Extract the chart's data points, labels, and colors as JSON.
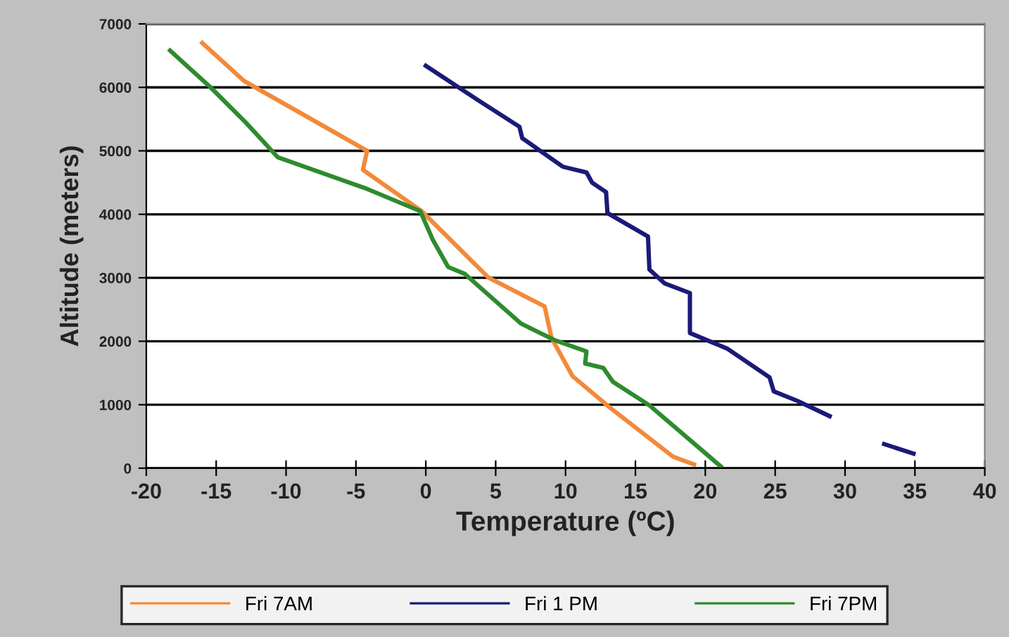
{
  "chart_data": {
    "type": "line",
    "xlabel": "Temperature (ºC)",
    "ylabel": "Altitude (meters)",
    "xlim": [
      -20,
      40
    ],
    "xticks": [
      -20,
      -15,
      -10,
      -5,
      0,
      5,
      10,
      15,
      20,
      25,
      30,
      35,
      40
    ],
    "ylim": [
      0,
      7000
    ],
    "yticks": [
      0,
      1000,
      2000,
      3000,
      4000,
      5000,
      6000,
      7000
    ],
    "grid": "y",
    "legend": "bottom",
    "marker": "none",
    "line_style": "solid",
    "series": [
      {
        "name": "Fri 7AM",
        "color": "#f28a3a",
        "x": [
          -16,
          -13,
          -4.2,
          -4.5,
          -0.3,
          4.5,
          8.5,
          9.0,
          10.5,
          13.2,
          17.7,
          19.2
        ],
        "values": [
          6700,
          6100,
          5000,
          4700,
          4050,
          3000,
          2550,
          2050,
          1450,
          950,
          180,
          60
        ]
      },
      {
        "name": "Fri 1 PM",
        "color": "#1a1a78",
        "x": [
          0.0,
          3.8,
          6.7,
          6.9,
          9.8,
          11.5,
          11.9,
          12.9,
          13.0,
          15.9,
          16.0,
          17.1,
          18.9,
          18.9,
          21.6,
          24.6,
          24.9,
          26.6,
          28.9,
          null,
          32.8,
          34.9
        ],
        "values": [
          6340,
          5790,
          5380,
          5200,
          4750,
          4660,
          4500,
          4350,
          4020,
          3650,
          3130,
          2910,
          2760,
          2130,
          1880,
          1430,
          1210,
          1060,
          820,
          null,
          380,
          230
        ]
      },
      {
        "name": "Fri 7PM",
        "color": "#2e8b2e",
        "x": [
          -18.3,
          -15.4,
          -12.9,
          -10.6,
          -4.2,
          -0.4,
          0.5,
          1.6,
          2.8,
          6.8,
          9.2,
          11.5,
          11.4,
          12.7,
          13.4,
          16.0,
          21.1
        ],
        "values": [
          6580,
          6000,
          5450,
          4900,
          4400,
          4050,
          3600,
          3170,
          3060,
          2280,
          2020,
          1840,
          1650,
          1580,
          1360,
          990,
          30
        ]
      }
    ]
  }
}
